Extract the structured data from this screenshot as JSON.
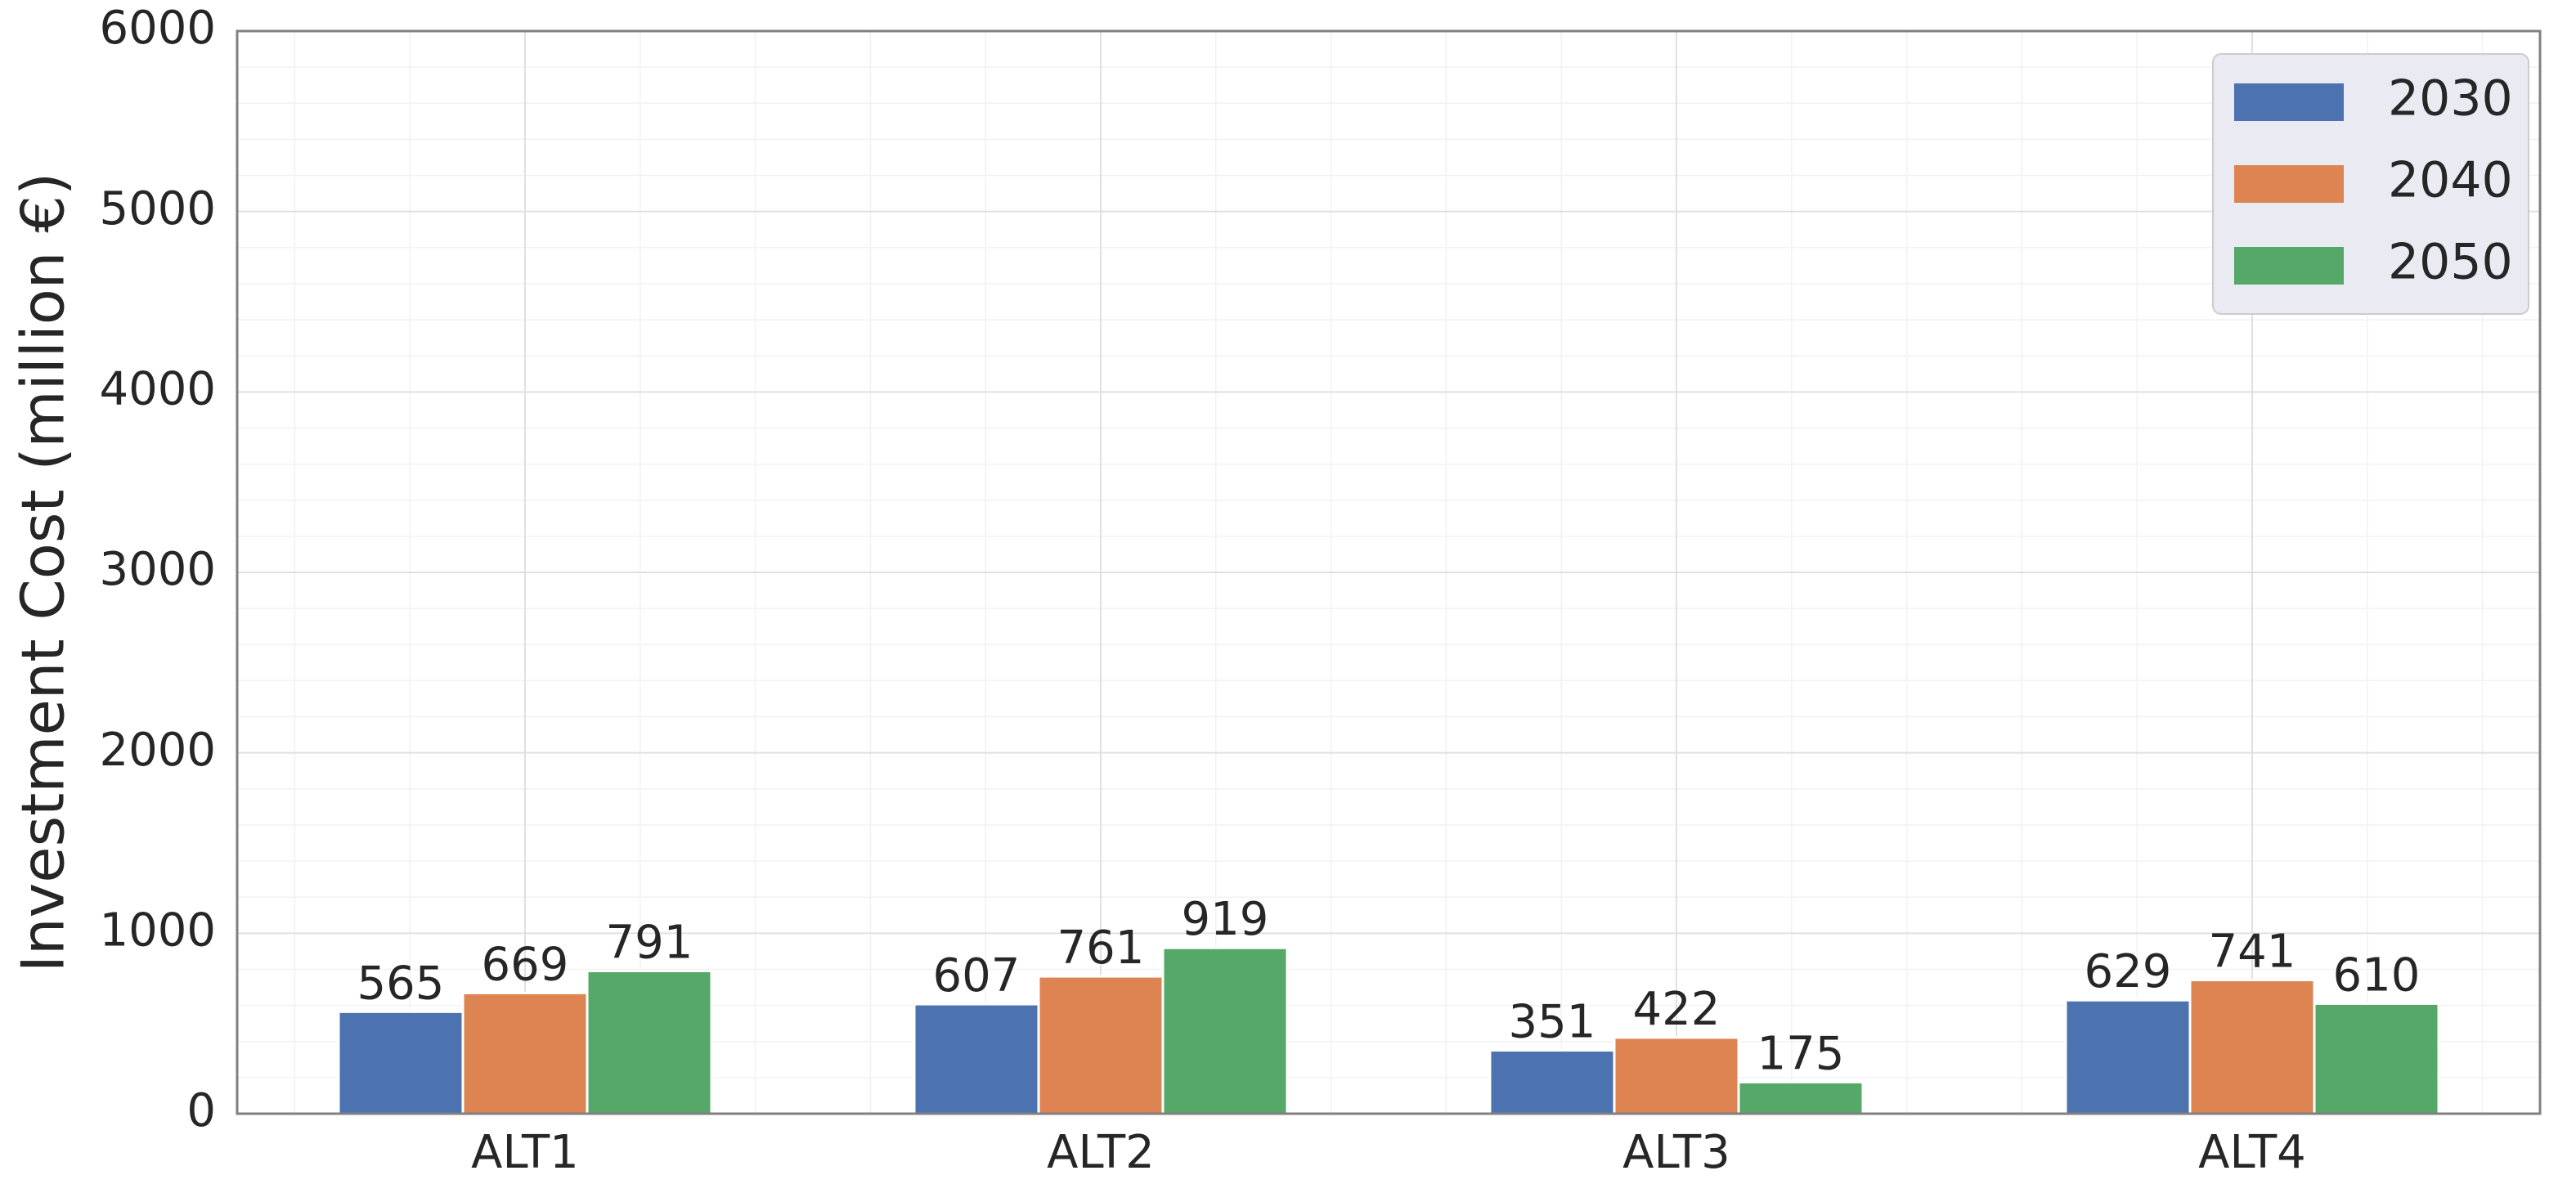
{
  "chart_data": {
    "type": "bar",
    "title": "",
    "xlabel": "",
    "ylabel": "Investment Cost (million €)",
    "ylim": [
      0,
      6000
    ],
    "yticks": [
      0,
      1000,
      2000,
      3000,
      4000,
      5000,
      6000
    ],
    "categories": [
      "ALT1",
      "ALT2",
      "ALT3",
      "ALT4"
    ],
    "series": [
      {
        "name": "2030",
        "values": [
          565,
          607,
          351,
          629
        ],
        "color": "#4c72b0"
      },
      {
        "name": "2040",
        "values": [
          669,
          761,
          422,
          741
        ],
        "color": "#dd8452"
      },
      {
        "name": "2050",
        "values": [
          791,
          919,
          175,
          610
        ],
        "color": "#55a868"
      }
    ],
    "grid": true,
    "legend_position": "top-right",
    "data_labels": true
  }
}
